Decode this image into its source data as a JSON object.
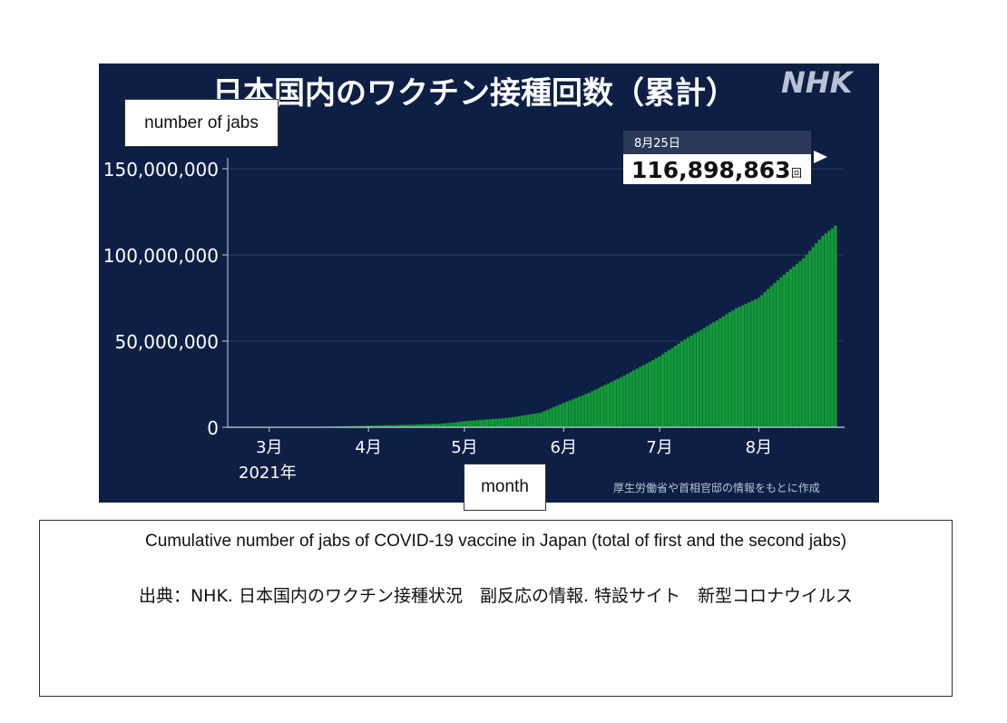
{
  "chart_data": {
    "type": "bar",
    "title": "日本国内のワクチン接種回数（累計）",
    "logo_text": "NHK",
    "xlabel": "month",
    "ylabel": "number of jabs",
    "year_label": "2021年",
    "source_note": "厚生労働省や首相官邸の情報をもとに作成",
    "x_ticks": [
      "3月",
      "4月",
      "5月",
      "6月",
      "7月",
      "8月"
    ],
    "y_ticks": [
      "0",
      "50,000,000",
      "100,000,000",
      "150,000,000"
    ],
    "ylim": [
      0,
      150000000
    ],
    "callout": {
      "date": "8月25日",
      "value": "116,898,863",
      "unit": "回"
    },
    "x_unit": "day-of-year",
    "x_range": [
      47,
      237
    ],
    "points": [
      [
        47,
        0
      ],
      [
        60,
        30000
      ],
      [
        74,
        200000
      ],
      [
        91,
        900000
      ],
      [
        105,
        1500000
      ],
      [
        115,
        2200000
      ],
      [
        121,
        3500000
      ],
      [
        135,
        5500000
      ],
      [
        145,
        8500000
      ],
      [
        152,
        14000000
      ],
      [
        160,
        20000000
      ],
      [
        170,
        29000000
      ],
      [
        182,
        41000000
      ],
      [
        190,
        51000000
      ],
      [
        200,
        62000000
      ],
      [
        206,
        69000000
      ],
      [
        213,
        75000000
      ],
      [
        220,
        87000000
      ],
      [
        227,
        98000000
      ],
      [
        233,
        111000000
      ],
      [
        237,
        116898863
      ]
    ]
  },
  "colors": {
    "panel_bg": "#0d1f45",
    "bar_fill": "#159a3c",
    "bar_edge": "#0c6b29",
    "axis_text": "#ffffff"
  },
  "caption": {
    "title": "Cumulative number of jabs of COVID-19 vaccine in Japan (total of first and the second jabs)",
    "source": "出典：NHK. 日本国内のワクチン接種状況　副反応の情報. 特設サイト　新型コロナウイルス"
  }
}
